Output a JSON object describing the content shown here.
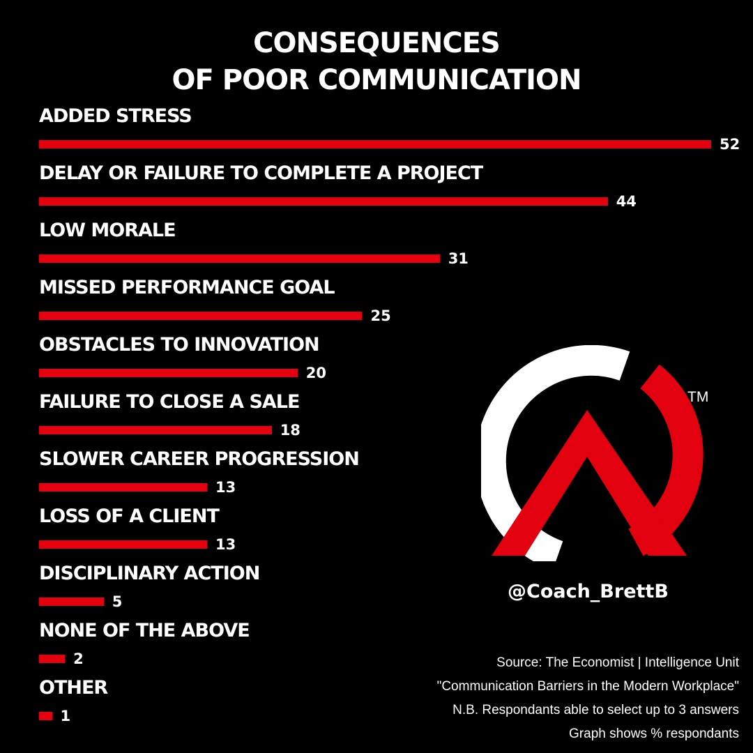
{
  "title_line1": "CONSEQUENCES",
  "title_line2": "OF POOR COMMUNICATION",
  "chart_data": {
    "type": "bar",
    "orientation": "horizontal",
    "categories": [
      "ADDED STRESS",
      "DELAY OR FAILURE TO COMPLETE A PROJECT",
      "LOW MORALE",
      "MISSED PERFORMANCE GOAL",
      "OBSTACLES TO INNOVATION",
      "FAILURE TO CLOSE A SALE",
      "SLOWER CAREER PROGRESSION",
      "LOSS OF A CLIENT",
      "DISCIPLINARY ACTION",
      "NONE OF THE ABOVE",
      "OTHER"
    ],
    "values": [
      52,
      44,
      31,
      25,
      20,
      18,
      13,
      13,
      5,
      2,
      1
    ],
    "title": "CONSEQUENCES OF POOR COMMUNICATION",
    "xlabel": "",
    "ylabel": "",
    "xlim": [
      0,
      52
    ],
    "grid": false,
    "bar_color": "#e3000f"
  },
  "logo": {
    "handle": "@Coach_BrettB",
    "trademark": "TM",
    "colors": {
      "ring": "#ffffff",
      "accent": "#e3000f"
    },
    "icon": "ca-monogram-logo"
  },
  "source": {
    "line1": "Source: The Economist | Intelligence Unit",
    "line2": "\"Communication Barriers in the Modern Workplace\"",
    "line3": "N.B. Respondants able to select up to 3 answers",
    "line4": "Graph shows % respondants"
  }
}
